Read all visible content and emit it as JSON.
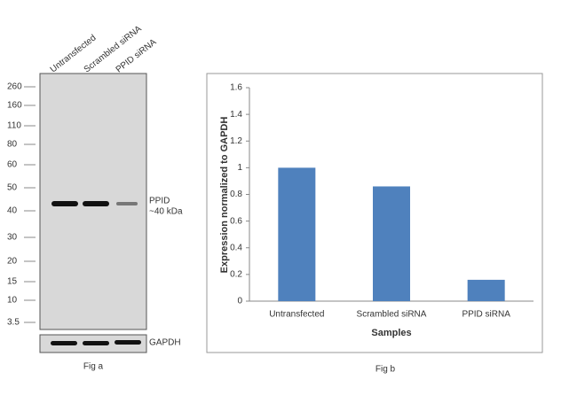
{
  "blot": {
    "lanes": [
      "Untransfected",
      "Scrambled siRNA",
      "PPID siRNA"
    ],
    "markers": [
      260,
      160,
      110,
      80,
      60,
      50,
      40,
      30,
      20,
      15,
      10,
      3.5
    ],
    "band_label": "PPID",
    "band_size": "~40 kDa",
    "control_label": "GAPDH",
    "caption": "Fig a"
  },
  "chart_data": {
    "type": "bar",
    "categories": [
      "Untransfected",
      "Scrambled siRNA",
      "PPID siRNA"
    ],
    "values": [
      1.0,
      0.86,
      0.16
    ],
    "color": "#4f81bd",
    "xlabel": "Samples",
    "ylabel": "Expression normalized to GAPDH",
    "ylim": [
      0,
      1.6
    ],
    "yticks": [
      0,
      0.2,
      0.4,
      0.6,
      0.8,
      1,
      1.2,
      1.4,
      1.6
    ],
    "grid": false,
    "caption": "Fig b"
  }
}
